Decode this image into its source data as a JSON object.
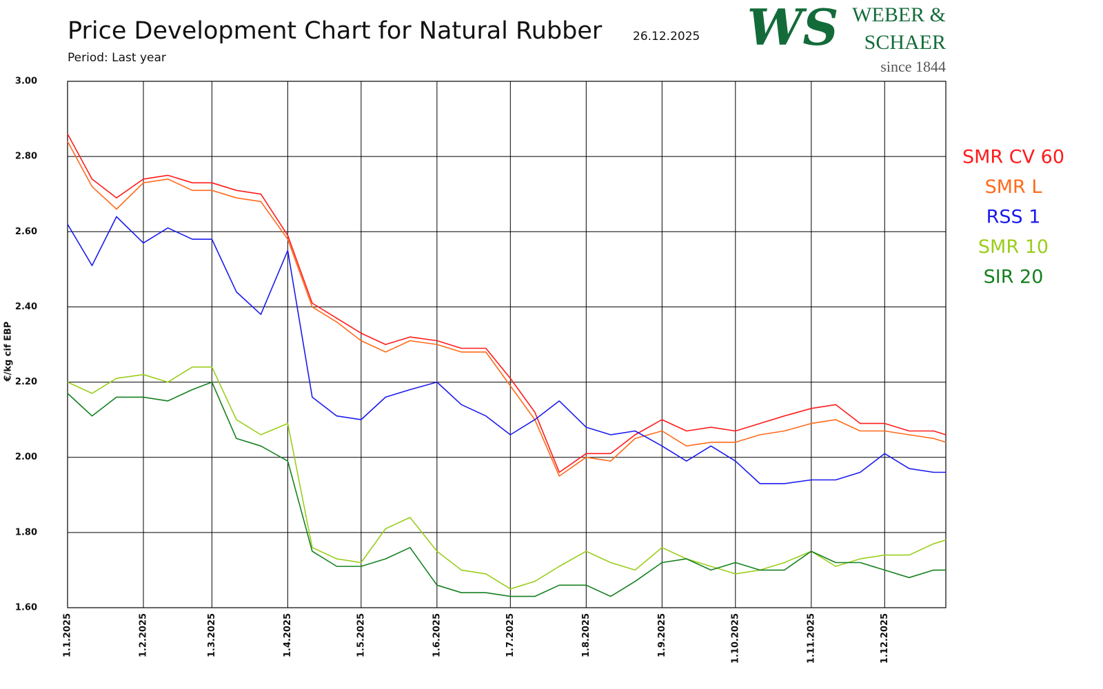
{
  "chart_data": {
    "type": "line",
    "title": "Price Development Chart for Natural Rubber",
    "date": "26.12.2025",
    "subtitle": "Period: Last year",
    "ylabel": "€/kg cif EBP",
    "logo_mark": "WS",
    "logo_lines": [
      "WEBER &",
      "SCHAER",
      "since 1844"
    ],
    "x": [
      "1.1.2025",
      "11.1.2025",
      "21.1.2025",
      "1.2.2025",
      "11.2.2025",
      "21.2.2025",
      "1.3.2025",
      "11.3.2025",
      "21.3.2025",
      "1.4.2025",
      "11.4.2025",
      "21.4.2025",
      "1.5.2025",
      "11.5.2025",
      "21.5.2025",
      "1.6.2025",
      "11.6.2025",
      "21.6.2025",
      "1.7.2025",
      "11.7.2025",
      "21.7.2025",
      "1.8.2025",
      "11.8.2025",
      "21.8.2025",
      "1.9.2025",
      "11.9.2025",
      "21.9.2025",
      "1.10.2025",
      "11.10.2025",
      "21.10.2025",
      "1.11.2025",
      "11.11.2025",
      "21.11.2025",
      "1.12.2025",
      "11.12.2025",
      "21.12.2025",
      "26.12.2025"
    ],
    "xlim": [
      "1.1.2025",
      "26.12.2025"
    ],
    "xticks": [
      "1.1.2025",
      "1.2.2025",
      "1.3.2025",
      "1.4.2025",
      "1.5.2025",
      "1.6.2025",
      "1.7.2025",
      "1.8.2025",
      "1.9.2025",
      "1.10.2025",
      "1.11.2025",
      "1.12.2025"
    ],
    "ylim": [
      1.6,
      3.0
    ],
    "yticks": [
      {
        "value": 1.6,
        "label": "1.60"
      },
      {
        "value": 1.8,
        "label": "1.80"
      },
      {
        "value": 2,
        "label": "2.00"
      },
      {
        "value": 2.2,
        "label": "2.20"
      },
      {
        "value": 2.4,
        "label": "2.40"
      },
      {
        "value": 2.6,
        "label": "2.60"
      },
      {
        "value": 2.8,
        "label": "2.80"
      },
      {
        "value": 3,
        "label": "3.00"
      }
    ],
    "grid": true,
    "legend": "right",
    "series": [
      {
        "name": "SMR CV 60",
        "color": "#ff1a1a",
        "values": [
          2.86,
          2.74,
          2.69,
          2.74,
          2.75,
          2.73,
          2.73,
          2.71,
          2.7,
          2.59,
          2.41,
          2.37,
          2.33,
          2.3,
          2.32,
          2.31,
          2.29,
          2.29,
          2.21,
          2.12,
          1.96,
          2.01,
          2.01,
          2.06,
          2.1,
          2.07,
          2.08,
          2.07,
          2.09,
          2.11,
          2.13,
          2.14,
          2.09,
          2.09,
          2.07,
          2.07,
          2.06
        ]
      },
      {
        "name": "SMR L",
        "color": "#ff6a1a",
        "values": [
          2.84,
          2.72,
          2.66,
          2.73,
          2.74,
          2.71,
          2.71,
          2.69,
          2.68,
          2.58,
          2.4,
          2.36,
          2.31,
          2.28,
          2.31,
          2.3,
          2.28,
          2.28,
          2.19,
          2.1,
          1.95,
          2.0,
          1.99,
          2.05,
          2.07,
          2.03,
          2.04,
          2.04,
          2.06,
          2.07,
          2.09,
          2.1,
          2.07,
          2.07,
          2.06,
          2.05,
          2.04
        ]
      },
      {
        "name": "RSS 1",
        "color": "#1a1aee",
        "values": [
          2.62,
          2.51,
          2.64,
          2.57,
          2.61,
          2.58,
          2.58,
          2.44,
          2.38,
          2.55,
          2.16,
          2.11,
          2.1,
          2.16,
          2.18,
          2.2,
          2.14,
          2.11,
          2.06,
          2.1,
          2.15,
          2.08,
          2.06,
          2.07,
          2.03,
          1.99,
          2.03,
          1.99,
          1.93,
          1.93,
          1.94,
          1.94,
          1.96,
          2.01,
          1.97,
          1.96,
          1.96
        ]
      },
      {
        "name": "SMR 10",
        "color": "#9acd1a",
        "values": [
          2.2,
          2.17,
          2.21,
          2.22,
          2.2,
          2.24,
          2.24,
          2.1,
          2.06,
          2.09,
          1.76,
          1.73,
          1.72,
          1.81,
          1.84,
          1.75,
          1.7,
          1.69,
          1.65,
          1.67,
          1.71,
          1.75,
          1.72,
          1.7,
          1.76,
          1.73,
          1.71,
          1.69,
          1.7,
          1.72,
          1.75,
          1.71,
          1.73,
          1.74,
          1.74,
          1.77,
          1.78
        ]
      },
      {
        "name": "SIR 20",
        "color": "#14801e",
        "values": [
          2.17,
          2.11,
          2.16,
          2.16,
          2.15,
          2.18,
          2.2,
          2.05,
          2.03,
          1.99,
          1.75,
          1.71,
          1.71,
          1.73,
          1.76,
          1.66,
          1.64,
          1.64,
          1.63,
          1.63,
          1.66,
          1.66,
          1.63,
          1.67,
          1.72,
          1.73,
          1.7,
          1.72,
          1.7,
          1.7,
          1.75,
          1.72,
          1.72,
          1.7,
          1.68,
          1.7,
          1.7
        ]
      }
    ]
  }
}
